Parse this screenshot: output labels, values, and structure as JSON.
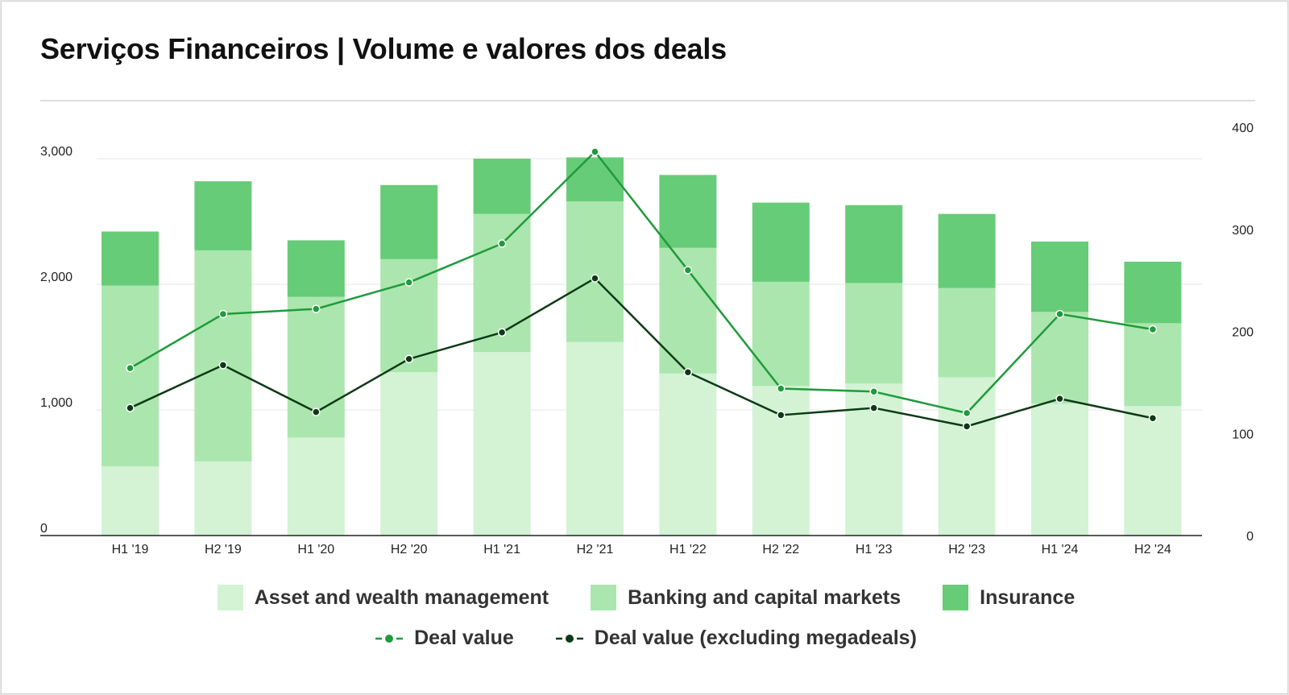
{
  "chart_data": {
    "type": "bar",
    "stacked": true,
    "title": "Serviços Financeiros | Volume e valores dos deals",
    "categories": [
      "H1 '19",
      "H2 '19",
      "H1 '20",
      "H2 '20",
      "H1 '21",
      "H2 '21",
      "H1 '22",
      "H2 '22",
      "H1 '23",
      "H2 '23",
      "H1 '24",
      "H2 '24"
    ],
    "ylim": [
      0,
      3000
    ],
    "yticks": [
      "0",
      "1,000",
      "2,000",
      "3,000"
    ],
    "ytick_values": [
      0,
      1000,
      2000,
      3000
    ],
    "y2lim": [
      0,
      400
    ],
    "y2ticks": [
      "0",
      "100",
      "200",
      "300",
      "400"
    ],
    "y2tick_values": [
      0,
      100,
      200,
      300,
      400
    ],
    "series": [
      {
        "name": "Asset and wealth management",
        "color": "#d3f3d4",
        "axis": "left",
        "values": [
          550,
          590,
          780,
          1300,
          1460,
          1540,
          1290,
          1190,
          1210,
          1260,
          1050,
          1030
        ]
      },
      {
        "name": "Banking and capital markets",
        "color": "#abe6ae",
        "axis": "left",
        "values": [
          1440,
          1680,
          1120,
          900,
          1100,
          1120,
          1000,
          830,
          800,
          710,
          730,
          660
        ]
      },
      {
        "name": "Insurance",
        "color": "#66cc77",
        "axis": "left",
        "values": [
          430,
          550,
          450,
          590,
          440,
          350,
          580,
          630,
          620,
          590,
          560,
          490
        ]
      }
    ],
    "lines": [
      {
        "name": "Deal value",
        "color": "#1f9a3c",
        "axis": "right",
        "values": [
          164,
          217,
          222,
          248,
          286,
          376,
          260,
          144,
          141,
          120,
          217,
          202
        ]
      },
      {
        "name": "Deal value (excluding megadeals)",
        "color": "#0d3a16",
        "axis": "right",
        "values": [
          125,
          167,
          121,
          173,
          199,
          252,
          160,
          118,
          125,
          107,
          134,
          115
        ]
      }
    ],
    "legend_position": "bottom",
    "grid": true
  }
}
